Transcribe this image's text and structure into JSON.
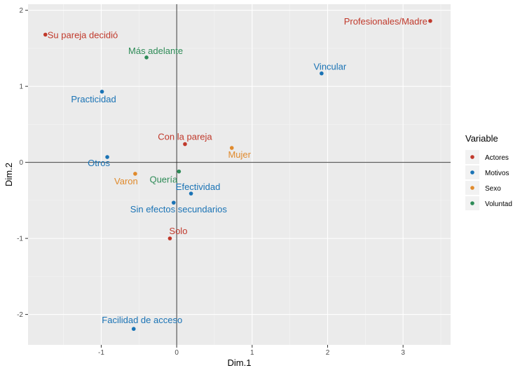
{
  "chart_data": {
    "type": "scatter",
    "xlabel": "Dim.1",
    "ylabel": "Dim.2",
    "xlim": [
      -1.97,
      3.63
    ],
    "ylim": [
      -2.4,
      2.08
    ],
    "x_ticks": [
      -1,
      0,
      1,
      2,
      3
    ],
    "y_ticks": [
      -2,
      -1,
      0,
      1,
      2
    ],
    "grid": true,
    "reference_lines": {
      "x": 0,
      "y": 0
    },
    "legend": {
      "title": "Variable",
      "position": "right",
      "entries": [
        "Actores",
        "Motivos",
        "Sexo",
        "Voluntad"
      ]
    },
    "series": [
      {
        "name": "Actores",
        "color": "#c0392b",
        "points": [
          {
            "label": "Profesionales/Madre",
            "x": 3.36,
            "y": 1.86
          },
          {
            "label": "Su pareja decidió",
            "x": -1.74,
            "y": 1.68
          },
          {
            "label": "Con la pareja",
            "x": 0.11,
            "y": 0.24
          },
          {
            "label": "Solo",
            "x": -0.09,
            "y": -1.0
          }
        ]
      },
      {
        "name": "Motivos",
        "color": "#1a73b5",
        "points": [
          {
            "label": "Vincular",
            "x": 1.92,
            "y": 1.17
          },
          {
            "label": "Practicidad",
            "x": -0.99,
            "y": 0.93
          },
          {
            "label": "Otros",
            "x": -0.92,
            "y": 0.07
          },
          {
            "label": "Efectividad",
            "x": 0.19,
            "y": -0.41
          },
          {
            "label": "Sin efectos secundarios",
            "x": -0.04,
            "y": -0.53
          },
          {
            "label": "Facilidad de acceso",
            "x": -0.57,
            "y": -2.19
          }
        ]
      },
      {
        "name": "Sexo",
        "color": "#e08a2c",
        "points": [
          {
            "label": "Mujer",
            "x": 0.73,
            "y": 0.19
          },
          {
            "label": "Varon",
            "x": -0.55,
            "y": -0.15
          }
        ]
      },
      {
        "name": "Voluntad",
        "color": "#2e8b57",
        "points": [
          {
            "label": "Más adelante",
            "x": -0.4,
            "y": 1.38
          },
          {
            "label": "Quería",
            "x": 0.03,
            "y": -0.12
          }
        ]
      }
    ]
  }
}
